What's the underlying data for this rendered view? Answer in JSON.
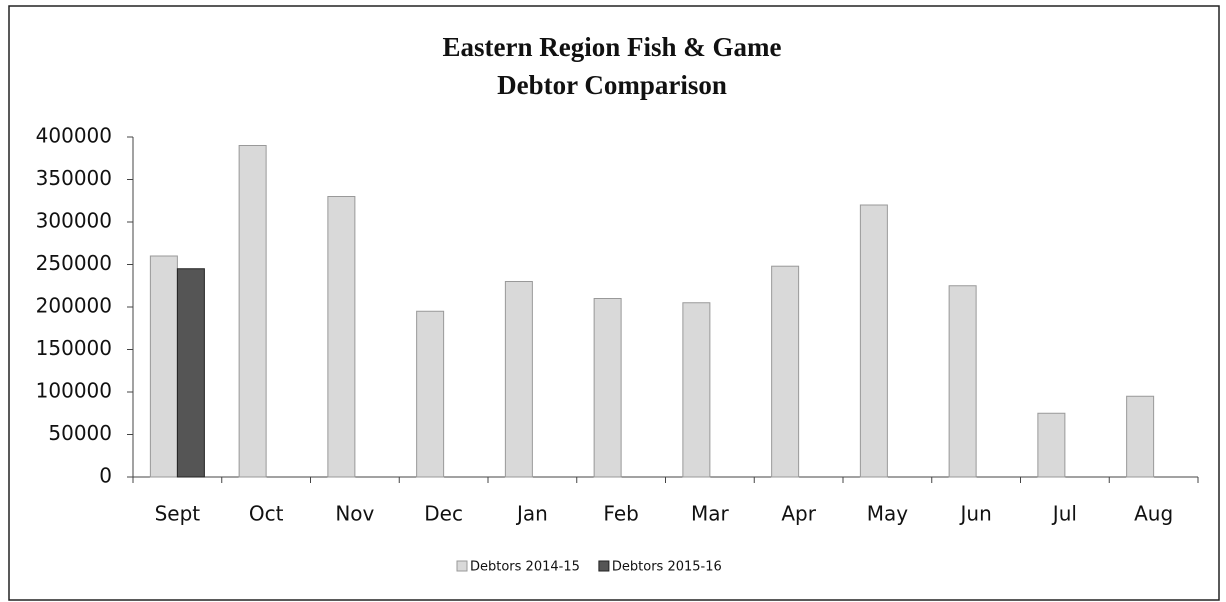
{
  "chart_data": {
    "type": "bar",
    "title": "Eastern Region Fish & Game",
    "subtitle": "Debtor Comparison",
    "categories": [
      "Sept",
      "Oct",
      "Nov",
      "Dec",
      "Jan",
      "Feb",
      "Mar",
      "Apr",
      "May",
      "Jun",
      "Jul",
      "Aug"
    ],
    "series": [
      {
        "name": "Debtors 2014-15",
        "color": "#d9d9d9",
        "values": [
          260000,
          390000,
          330000,
          195000,
          230000,
          210000,
          205000,
          248000,
          320000,
          225000,
          75000,
          95000
        ]
      },
      {
        "name": "Debtors 2015-16",
        "color": "#555555",
        "values": [
          245000,
          null,
          null,
          null,
          null,
          null,
          null,
          null,
          null,
          null,
          null,
          null
        ]
      }
    ],
    "ylim": [
      0,
      400000
    ],
    "yticks": [
      0,
      50000,
      100000,
      150000,
      200000,
      250000,
      300000,
      350000,
      400000
    ],
    "grid": false,
    "legend": "bottom"
  }
}
